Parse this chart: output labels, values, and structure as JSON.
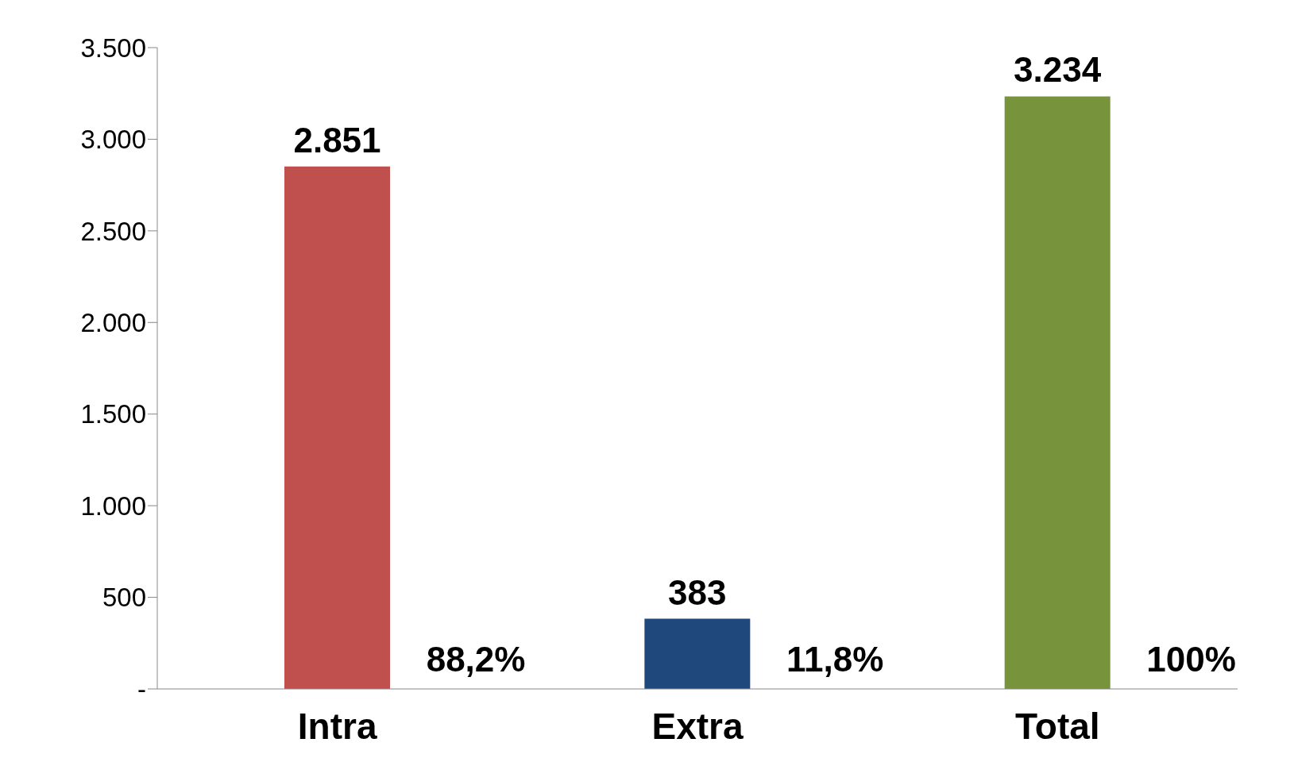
{
  "chart_data": {
    "type": "bar",
    "categories": [
      "Intra",
      "Extra",
      "Total"
    ],
    "values": [
      2851,
      383,
      3234
    ],
    "colors": [
      "#c0504d",
      "#1f497d",
      "#77933c"
    ],
    "value_labels": [
      "2.851",
      "383",
      "3.234"
    ],
    "ylim": [
      0,
      3500
    ],
    "yticks": [
      {
        "value": 0,
        "label": "-"
      },
      500,
      {
        "value": 1000,
        "label": "1.000"
      },
      {
        "value": 1500,
        "label": "1.500"
      },
      {
        "value": 2000,
        "label": "2.000"
      },
      {
        "value": 2500,
        "label": "2.500"
      },
      {
        "value": 3000,
        "label": "3.000"
      },
      {
        "value": 3500,
        "label": "3.500"
      }
    ],
    "grid": false,
    "legend": false,
    "annotations": [
      "88,2%",
      "11,8%",
      "100%"
    ]
  }
}
